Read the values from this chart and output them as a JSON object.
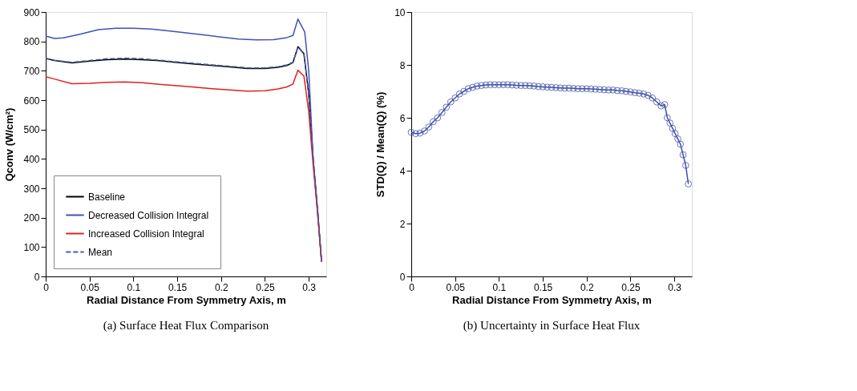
{
  "chart_data": [
    {
      "type": "line",
      "title": "(a) Surface Heat Flux Comparison",
      "xlabel": "Radial Distance From Symmetry Axis, m",
      "ylabel": "Qconv (W/cm²)",
      "xlim": [
        0,
        0.32
      ],
      "ylim": [
        0,
        900
      ],
      "xticks": [
        0,
        0.05,
        0.1,
        0.15,
        0.2,
        0.25,
        0.3
      ],
      "yticks": [
        0,
        100,
        200,
        300,
        400,
        500,
        600,
        700,
        800,
        900
      ],
      "grid": false,
      "legend": "bottom left",
      "marker": "none",
      "series": [
        {
          "name": "Baseline",
          "color": "#000000",
          "line_style": "solid",
          "x": [
            0,
            0.01,
            0.03,
            0.05,
            0.07,
            0.09,
            0.11,
            0.13,
            0.15,
            0.17,
            0.19,
            0.21,
            0.23,
            0.25,
            0.265,
            0.275,
            0.282,
            0.2877,
            0.2945,
            0.3,
            0.305,
            0.31,
            0.3146
          ],
          "values": [
            742,
            735,
            727,
            733,
            738,
            740,
            738,
            734,
            728,
            723,
            718,
            713,
            708,
            708,
            712,
            718,
            728,
            782,
            758,
            620,
            400,
            230,
            50
          ]
        },
        {
          "name": "Decreased Collision Integral",
          "color": "#3f51b5",
          "line_style": "solid",
          "x": [
            0,
            0.01,
            0.02,
            0.04,
            0.06,
            0.08,
            0.1,
            0.12,
            0.14,
            0.16,
            0.18,
            0.2,
            0.22,
            0.24,
            0.26,
            0.275,
            0.282,
            0.2877,
            0.2954,
            0.3,
            0.305,
            0.31,
            0.3146
          ],
          "values": [
            818,
            810,
            812,
            825,
            840,
            845,
            845,
            842,
            836,
            829,
            822,
            815,
            808,
            805,
            806,
            813,
            820,
            876,
            832,
            700,
            400,
            220,
            50
          ]
        },
        {
          "name": "Increased Collision Integral",
          "color": "#e02020",
          "line_style": "solid",
          "x": [
            0,
            0.01,
            0.03,
            0.05,
            0.07,
            0.09,
            0.11,
            0.13,
            0.15,
            0.17,
            0.19,
            0.21,
            0.23,
            0.25,
            0.265,
            0.275,
            0.282,
            0.2877,
            0.2945,
            0.3,
            0.305,
            0.31,
            0.3146
          ],
          "values": [
            680,
            672,
            656,
            657,
            661,
            662,
            659,
            654,
            649,
            644,
            639,
            635,
            631,
            632,
            638,
            645,
            655,
            702,
            682,
            560,
            380,
            220,
            50
          ]
        },
        {
          "name": "Mean",
          "color": "#4a5aa8",
          "line_style": "dashed",
          "x": [
            0,
            0.01,
            0.03,
            0.05,
            0.07,
            0.09,
            0.11,
            0.13,
            0.15,
            0.17,
            0.19,
            0.21,
            0.23,
            0.25,
            0.265,
            0.275,
            0.282,
            0.2877,
            0.2945,
            0.3,
            0.305,
            0.31,
            0.3146
          ],
          "values": [
            743,
            736,
            729,
            735,
            741,
            743,
            741,
            736,
            730,
            725,
            720,
            715,
            710,
            710,
            714,
            720,
            729,
            780,
            757,
            625,
            400,
            228,
            50
          ]
        }
      ]
    },
    {
      "type": "line",
      "title": "(b) Uncertainty in Surface Heat Flux",
      "xlabel": "Radial Distance From Symmetry Axis, m",
      "ylabel": "STD(Q) / Mean(Q) (%)",
      "xlim": [
        0,
        0.32
      ],
      "ylim": [
        0,
        10
      ],
      "xticks": [
        0,
        0.05,
        0.1,
        0.15,
        0.2,
        0.25,
        0.3
      ],
      "yticks": [
        0,
        2,
        4,
        6,
        8,
        10
      ],
      "grid": false,
      "legend": false,
      "marker": "circle",
      "series": [
        {
          "color": "#4050a8",
          "line_style": "solid",
          "x": [
            0,
            0.005,
            0.01,
            0.015,
            0.02,
            0.025,
            0.03,
            0.035,
            0.04,
            0.045,
            0.05,
            0.055,
            0.06,
            0.065,
            0.07,
            0.075,
            0.08,
            0.085,
            0.09,
            0.095,
            0.1,
            0.105,
            0.11,
            0.115,
            0.12,
            0.125,
            0.13,
            0.135,
            0.14,
            0.145,
            0.15,
            0.155,
            0.16,
            0.165,
            0.17,
            0.175,
            0.18,
            0.185,
            0.19,
            0.195,
            0.2,
            0.205,
            0.21,
            0.215,
            0.22,
            0.225,
            0.23,
            0.235,
            0.24,
            0.245,
            0.25,
            0.255,
            0.26,
            0.265,
            0.27,
            0.275,
            0.28,
            0.285,
            0.289,
            0.292,
            0.295,
            0.298,
            0.301,
            0.304,
            0.307,
            0.31,
            0.313,
            0.316
          ],
          "values": [
            5.45,
            5.4,
            5.42,
            5.5,
            5.65,
            5.85,
            6.0,
            6.2,
            6.4,
            6.6,
            6.75,
            6.9,
            7.0,
            7.1,
            7.15,
            7.2,
            7.22,
            7.24,
            7.25,
            7.25,
            7.25,
            7.25,
            7.25,
            7.24,
            7.23,
            7.22,
            7.22,
            7.21,
            7.2,
            7.18,
            7.17,
            7.16,
            7.15,
            7.14,
            7.13,
            7.12,
            7.12,
            7.11,
            7.1,
            7.1,
            7.1,
            7.09,
            7.08,
            7.07,
            7.06,
            7.05,
            7.05,
            7.03,
            7.02,
            7.0,
            6.98,
            6.95,
            6.93,
            6.9,
            6.85,
            6.75,
            6.6,
            6.45,
            6.5,
            6.0,
            5.8,
            5.6,
            5.4,
            5.2,
            5.0,
            4.6,
            4.2,
            3.5
          ]
        }
      ]
    }
  ]
}
